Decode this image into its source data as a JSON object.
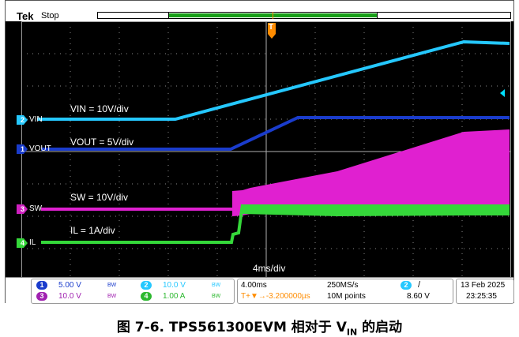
{
  "header": {
    "brand": "Tek",
    "status": "Stop"
  },
  "trigger_marker": "T",
  "channels": [
    {
      "num": "2",
      "label": "VIN",
      "color": "#25c8ff"
    },
    {
      "num": "1",
      "label": "VOUT",
      "color": "#1a3ccc"
    },
    {
      "num": "3",
      "label": "SW",
      "color": "#d020c0"
    },
    {
      "num": "4",
      "label": "IL",
      "color": "#35d83a"
    }
  ],
  "trace_labels": {
    "vin": "VIN = 10V/div",
    "vout": "VOUT = 5V/div",
    "sw": "SW = 10V/div",
    "il": "IL = 1A/div"
  },
  "time_div_label": "4ms/div",
  "status": {
    "ch1": {
      "num": "1",
      "value": "5.00 V",
      "bw": "BW"
    },
    "ch3": {
      "num": "3",
      "value": "10.0 V",
      "bw": "BW"
    },
    "ch2": {
      "num": "2",
      "value": "10.0 V",
      "bw": "BW"
    },
    "ch4": {
      "num": "4",
      "value": "1.00 A",
      "bw": "BW"
    },
    "timebase": "4.00ms",
    "sample_rate": "250MS/s",
    "trigger_pos": "T+▼→-3.200000µs",
    "record_length": "10M points",
    "trig_ch": "2",
    "trig_slope": "/",
    "trig_level": "8.60 V",
    "date": "13 Feb  2025",
    "time": "23:25:35"
  },
  "caption": {
    "prefix": "图 7-6. TPS561300EVM 相对于 V",
    "sub": "IN",
    "suffix": " 的启动"
  }
}
